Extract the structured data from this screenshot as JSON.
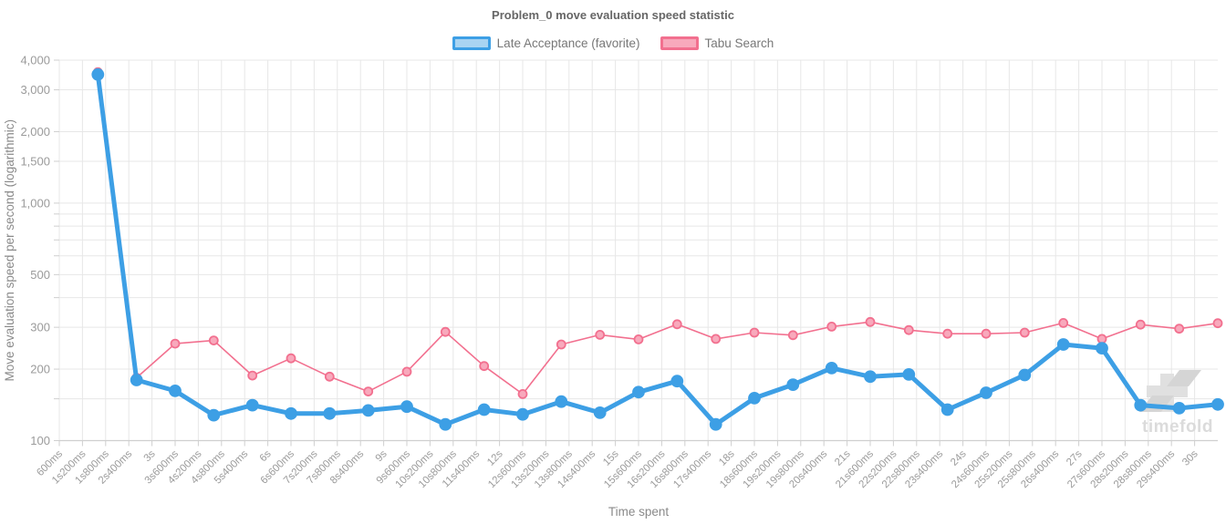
{
  "title": "Problem_0 move evaluation speed statistic",
  "legend": {
    "items": [
      {
        "label": "Late Acceptance (favorite)",
        "fill": "#A9D4F2",
        "border": "#3D9FE5"
      },
      {
        "label": "Tabu Search",
        "fill": "#F8A9BC",
        "border": "#F2708F"
      }
    ]
  },
  "watermark": {
    "text": "timefold",
    "color": "#DBDBDB",
    "logo_color": "#E0E0E0",
    "logo_accent": "#D5D5D5"
  },
  "chart_data": {
    "type": "line",
    "title": "Problem_0 move evaluation speed statistic",
    "xlabel": "Time spent",
    "ylabel": "Move evaluation speed per second (logarithmic)",
    "x_axis": {
      "scale": "linear",
      "unit": "seconds",
      "min": 0.6,
      "max": 30.6,
      "tick_step": 0.6,
      "tick_labels": [
        "600ms",
        "1s200ms",
        "1s800ms",
        "2s400ms",
        "3s",
        "3s600ms",
        "4s200ms",
        "4s800ms",
        "5s400ms",
        "6s",
        "6s600ms",
        "7s200ms",
        "7s800ms",
        "8s400ms",
        "9s",
        "9s600ms",
        "10s200ms",
        "10s800ms",
        "11s400ms",
        "12s",
        "12s600ms",
        "13s200ms",
        "13s800ms",
        "14s400ms",
        "15s",
        "15s600ms",
        "16s200ms",
        "16s800ms",
        "17s400ms",
        "18s",
        "18s600ms",
        "19s200ms",
        "19s800ms",
        "20s400ms",
        "21s",
        "21s600ms",
        "22s200ms",
        "22s800ms",
        "23s400ms",
        "24s",
        "24s600ms",
        "25s200ms",
        "25s800ms",
        "26s400ms",
        "27s",
        "27s600ms",
        "28s200ms",
        "28s800ms",
        "29s400ms",
        "30s"
      ]
    },
    "y_axis": {
      "scale": "log",
      "ylim": [
        100,
        4000
      ],
      "labeled_ticks": [
        {
          "value": 100,
          "label": "100"
        },
        {
          "value": 200,
          "label": "200"
        },
        {
          "value": 300,
          "label": "300"
        },
        {
          "value": 500,
          "label": "500"
        },
        {
          "value": 1000,
          "label": "1,000"
        },
        {
          "value": 1500,
          "label": "1,500"
        },
        {
          "value": 2000,
          "label": "2,000"
        },
        {
          "value": 3000,
          "label": "3,000"
        },
        {
          "value": 4000,
          "label": "4,000"
        }
      ],
      "minor_grid": [
        150,
        400,
        600,
        700,
        800,
        900
      ]
    },
    "grid": true,
    "legend_position": "top",
    "grid_color": "#E7E7E7",
    "axis_line_color": "#CFCFCF",
    "tick_text_color": "#9B9B9B",
    "axis_title_color": "#8A8A8A",
    "x_seconds": [
      1.6,
      2.6,
      3.6,
      4.6,
      5.6,
      6.6,
      7.6,
      8.6,
      9.6,
      10.6,
      11.6,
      12.6,
      13.6,
      14.6,
      15.6,
      16.6,
      17.6,
      18.6,
      19.6,
      20.6,
      21.6,
      22.6,
      23.6,
      24.6,
      25.6,
      26.6,
      27.6,
      28.6,
      29.6,
      30.6
    ],
    "series": [
      {
        "name": "Late Acceptance (favorite)",
        "color": "#3D9FE5",
        "point_fill": "#3D9FE5",
        "point_border": "#3D9FE5",
        "line_width": 5,
        "point_radius": 6,
        "values": [
          3480,
          180,
          162,
          128,
          141,
          130,
          130,
          134,
          139,
          117,
          135,
          129,
          146,
          131,
          160,
          178,
          117,
          151,
          172,
          202,
          186,
          190,
          135,
          159,
          189,
          254,
          245,
          141,
          137,
          142
        ]
      },
      {
        "name": "Tabu Search",
        "color": "#F2708F",
        "point_fill": "#F8A9BC",
        "point_border": "#F2708F",
        "line_width": 1.6,
        "point_radius": 4.5,
        "values": [
          3560,
          184,
          256,
          264,
          188,
          222,
          186,
          161,
          195,
          287,
          206,
          157,
          254,
          279,
          267,
          309,
          268,
          285,
          278,
          302,
          316,
          292,
          282,
          282,
          285,
          313,
          268,
          308,
          296,
          312
        ]
      }
    ]
  }
}
